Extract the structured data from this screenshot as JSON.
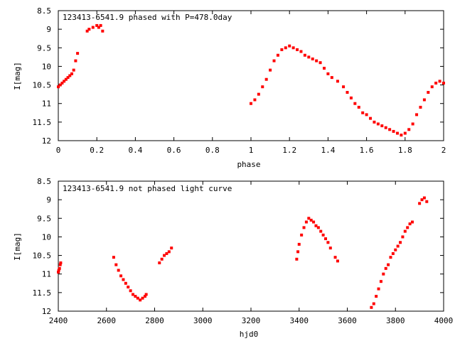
{
  "chart_data": [
    {
      "type": "scatter",
      "title": "123413-6541.9 phased with P=478.0day",
      "xlabel": "phase",
      "ylabel": "I[mag]",
      "xlim": [
        0,
        2
      ],
      "ylim": [
        12,
        8.5
      ],
      "y_inverted": true,
      "x_ticks": [
        "0",
        "0.2",
        "0.4",
        "0.6",
        "0.8",
        "1",
        "1.2",
        "1.4",
        "1.6",
        "1.8",
        "2"
      ],
      "y_ticks": [
        "8.5",
        "9",
        "9.5",
        "10",
        "10.5",
        "11",
        "11.5",
        "12"
      ],
      "marker_color": "#ff0000",
      "grid": false,
      "series": [
        {
          "x": [
            0.0,
            0.01,
            0.02,
            0.03,
            0.04,
            0.05,
            0.06,
            0.07,
            0.08,
            0.09,
            0.1,
            0.15,
            0.16,
            0.18,
            0.2,
            0.21,
            0.22,
            0.23,
            1.0,
            1.02,
            1.04,
            1.06,
            1.08,
            1.1,
            1.12,
            1.14,
            1.16,
            1.18,
            1.2,
            1.22,
            1.24,
            1.26,
            1.28,
            1.3,
            1.32,
            1.34,
            1.36,
            1.38,
            1.4,
            1.42,
            1.45,
            1.48,
            1.5,
            1.52,
            1.54,
            1.56,
            1.58,
            1.6,
            1.62,
            1.64,
            1.66,
            1.68,
            1.7,
            1.72,
            1.74,
            1.76,
            1.78,
            1.8,
            1.82,
            1.84,
            1.86,
            1.88,
            1.9,
            1.92,
            1.94,
            1.96,
            1.98,
            2.0
          ],
          "y": [
            10.55,
            10.5,
            10.45,
            10.4,
            10.35,
            10.3,
            10.25,
            10.2,
            10.1,
            9.85,
            9.65,
            9.05,
            9.0,
            8.95,
            8.9,
            8.95,
            8.9,
            9.05,
            11.0,
            10.9,
            10.75,
            10.55,
            10.35,
            10.1,
            9.85,
            9.7,
            9.55,
            9.5,
            9.45,
            9.5,
            9.55,
            9.6,
            9.7,
            9.75,
            9.8,
            9.85,
            9.9,
            10.05,
            10.2,
            10.3,
            10.4,
            10.55,
            10.7,
            10.85,
            11.0,
            11.1,
            11.25,
            11.3,
            11.4,
            11.5,
            11.55,
            11.6,
            11.65,
            11.7,
            11.75,
            11.8,
            11.85,
            11.8,
            11.7,
            11.55,
            11.3,
            11.1,
            10.9,
            10.7,
            10.55,
            10.45,
            10.4,
            10.45
          ]
        }
      ]
    },
    {
      "type": "scatter",
      "title": "123413-6541.9 not phased light curve",
      "xlabel": "hjd0",
      "ylabel": "I[mag]",
      "xlim": [
        2400,
        4000
      ],
      "ylim": [
        12,
        8.5
      ],
      "y_inverted": true,
      "x_ticks": [
        "2400",
        "2600",
        "2800",
        "3000",
        "3200",
        "3400",
        "3600",
        "3800",
        "4000"
      ],
      "y_ticks": [
        "8.5",
        "9",
        "9.5",
        "10",
        "10.5",
        "11",
        "11.5",
        "12"
      ],
      "marker_color": "#ff0000",
      "grid": false,
      "series": [
        {
          "x": [
            2400,
            2402,
            2405,
            2408,
            2410,
            2630,
            2640,
            2650,
            2660,
            2670,
            2680,
            2690,
            2700,
            2710,
            2720,
            2730,
            2740,
            2750,
            2760,
            2765,
            2820,
            2830,
            2840,
            2850,
            2860,
            2870,
            3390,
            3395,
            3400,
            3410,
            3420,
            3430,
            3440,
            3450,
            3460,
            3470,
            3480,
            3490,
            3500,
            3510,
            3520,
            3530,
            3550,
            3560,
            3700,
            3710,
            3720,
            3730,
            3740,
            3750,
            3760,
            3770,
            3780,
            3790,
            3800,
            3810,
            3820,
            3830,
            3840,
            3850,
            3860,
            3870,
            3900,
            3910,
            3920,
            3930
          ],
          "y": [
            10.95,
            10.9,
            10.85,
            10.75,
            10.7,
            10.55,
            10.75,
            10.9,
            11.05,
            11.15,
            11.25,
            11.35,
            11.45,
            11.55,
            11.6,
            11.65,
            11.7,
            11.65,
            11.6,
            11.55,
            10.7,
            10.6,
            10.5,
            10.45,
            10.4,
            10.3,
            10.6,
            10.4,
            10.2,
            9.95,
            9.75,
            9.6,
            9.5,
            9.55,
            9.6,
            9.7,
            9.75,
            9.85,
            9.95,
            10.05,
            10.15,
            10.3,
            10.55,
            10.65,
            11.9,
            11.8,
            11.6,
            11.4,
            11.2,
            11.0,
            10.85,
            10.75,
            10.55,
            10.45,
            10.35,
            10.25,
            10.15,
            10.0,
            9.85,
            9.75,
            9.65,
            9.6,
            9.1,
            9.0,
            8.95,
            9.05
          ]
        }
      ]
    }
  ]
}
